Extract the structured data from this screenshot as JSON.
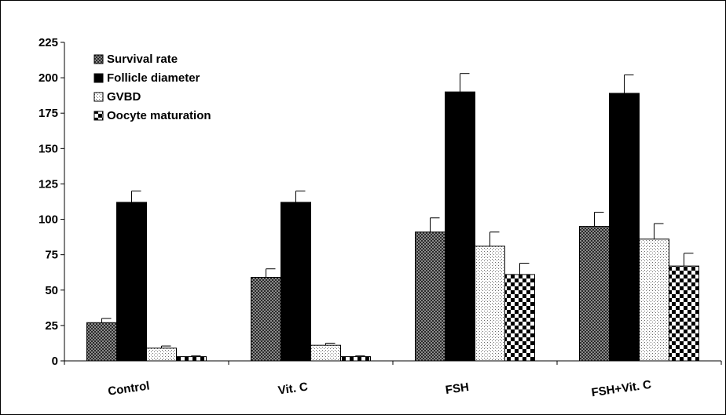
{
  "chart_data": {
    "type": "bar",
    "title": "",
    "xlabel": "",
    "ylabel": "",
    "categories": [
      "Control",
      "Vit. C",
      "FSH",
      "FSH+Vit. C"
    ],
    "ylim": [
      0,
      225
    ],
    "yticks": [
      "0",
      "25",
      "50",
      "75",
      "100",
      "125",
      "150",
      "175",
      "200",
      "225"
    ],
    "grid": false,
    "legend_position": "top-left",
    "series": [
      {
        "name": "Survival rate",
        "pattern": "dark-checker",
        "values": [
          27,
          59,
          91,
          95
        ],
        "errors": [
          3,
          6,
          10,
          10
        ]
      },
      {
        "name": "Follicle diameter",
        "pattern": "solid-black",
        "values": [
          112,
          112,
          190,
          189
        ],
        "errors": [
          8,
          8,
          13,
          13
        ]
      },
      {
        "name": "GVBD",
        "pattern": "light-dots",
        "values": [
          9,
          11,
          81,
          86
        ],
        "errors": [
          1.5,
          1.5,
          10,
          11
        ]
      },
      {
        "name": "Oocyte maturation",
        "pattern": "coarse-checker",
        "values": [
          3,
          3,
          61,
          67
        ],
        "errors": [
          0.5,
          0.5,
          8,
          9
        ]
      }
    ]
  }
}
